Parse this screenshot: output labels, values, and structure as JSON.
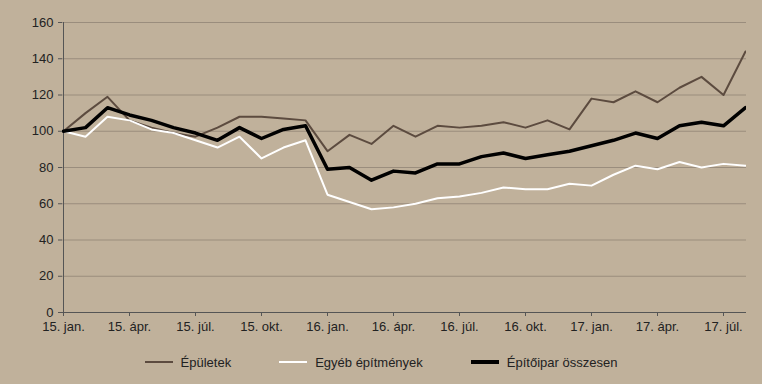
{
  "chart_data": {
    "type": "line",
    "categories": [
      "15. jan.",
      null,
      null,
      "15. ápr.",
      null,
      null,
      "15. júl.",
      null,
      null,
      "15. okt.",
      null,
      null,
      "16. jan.",
      null,
      null,
      "16. ápr.",
      null,
      null,
      "16. júl.",
      null,
      null,
      "16. okt.",
      null,
      null,
      "17. jan.",
      null,
      null,
      "17. ápr.",
      null,
      null,
      "17. júl.",
      null
    ],
    "series": [
      {
        "name": "Épületek",
        "color": "#5c4b3f",
        "values": [
          100,
          110,
          119,
          106,
          102,
          99,
          97,
          102,
          108,
          108,
          107,
          106,
          89,
          98,
          93,
          103,
          97,
          103,
          102,
          103,
          105,
          102,
          106,
          101,
          118,
          116,
          122,
          116,
          124,
          130,
          120,
          144
        ]
      },
      {
        "name": "Egyéb építmények",
        "color": "#ffffff",
        "values": [
          100,
          97,
          108,
          106,
          101,
          99,
          95,
          91,
          97,
          85,
          91,
          95,
          65,
          61,
          57,
          58,
          60,
          63,
          64,
          66,
          69,
          68,
          68,
          71,
          70,
          76,
          81,
          79,
          83,
          80,
          82,
          81
        ]
      },
      {
        "name": "Építőipar összesen",
        "color": "#000000",
        "values": [
          100,
          102,
          113,
          109,
          106,
          102,
          99,
          95,
          102,
          96,
          101,
          103,
          79,
          80,
          73,
          78,
          77,
          82,
          82,
          86,
          88,
          85,
          87,
          89,
          92,
          95,
          99,
          96,
          103,
          105,
          103,
          113
        ]
      }
    ],
    "ylim": [
      0,
      160
    ],
    "yticks": [
      0,
      20,
      40,
      60,
      80,
      100,
      120,
      140,
      160
    ],
    "grid": true,
    "legend": "bottom"
  }
}
